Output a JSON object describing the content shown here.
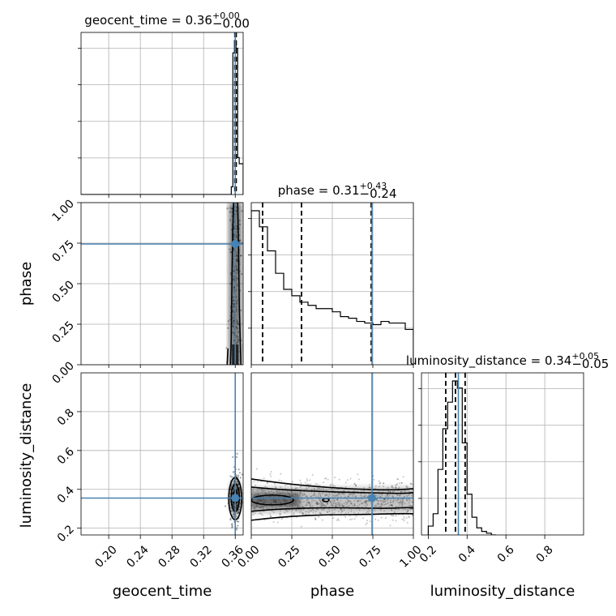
{
  "chart_data": {
    "type": "corner",
    "parameters": [
      "geocent_time",
      "phase",
      "luminosity_distance"
    ],
    "axis_labels": {
      "geocent_time": "geocent_time",
      "phase": "phase",
      "luminosity_distance": "luminosity_distance"
    },
    "titles": {
      "geocent_time": {
        "name": "geocent_time",
        "median": "0.36",
        "plus": "+0.00",
        "minus": "−0.00"
      },
      "phase": {
        "name": "phase",
        "median": "0.31",
        "plus": "+0.43",
        "minus": "−0.24"
      },
      "luminosity_distance": {
        "name": "luminosity_distance",
        "median": "0.34",
        "plus": "+0.05",
        "minus": "−0.05"
      }
    },
    "ranges": {
      "geocent_time": [
        0.165,
        0.37
      ],
      "phase": [
        0.0,
        1.0
      ],
      "luminosity_distance": [
        0.165,
        1.0
      ]
    },
    "tick_values": {
      "geocent_time": [
        0.2,
        0.24,
        0.28,
        0.32,
        0.36
      ],
      "phase_y": [
        0.0,
        0.25,
        0.5,
        0.75,
        1.0
      ],
      "phase_x": [
        0.0,
        0.25,
        0.5,
        0.75,
        1.0
      ],
      "luminosity_distance_y": [
        0.2,
        0.4,
        0.6,
        0.8
      ],
      "luminosity_distance_x": [
        0.2,
        0.4,
        0.6,
        0.8
      ]
    },
    "tick_labels": {
      "geocent_time": [
        "0.20",
        "0.24",
        "0.28",
        "0.32",
        "0.36"
      ],
      "phase_y": [
        "0.00",
        "0.25",
        "0.50",
        "0.75",
        "1.00"
      ],
      "phase_x": [
        "0.00",
        "0.25",
        "0.50",
        "0.75",
        "1.00"
      ],
      "luminosity_distance_y": [
        "0.2",
        "0.4",
        "0.6",
        "0.8"
      ],
      "luminosity_distance_x": [
        "0.2",
        "0.4",
        "0.6",
        "0.8"
      ]
    },
    "truths": {
      "geocent_time": 0.36,
      "phase": 0.745,
      "luminosity_distance": 0.355
    },
    "quantiles": {
      "geocent_time": [
        0.3595,
        0.3605,
        0.3612
      ],
      "phase": [
        0.07,
        0.31,
        0.74
      ],
      "luminosity_distance": [
        0.29,
        0.34,
        0.39
      ]
    },
    "histograms": {
      "geocent_time": {
        "edges": [
          0.165,
          0.355,
          0.357,
          0.359,
          0.361,
          0.363,
          0.365,
          0.37
        ],
        "counts": [
          0.0,
          0.05,
          0.92,
          1.0,
          0.95,
          0.24,
          0.2
        ]
      },
      "phase": {
        "edges": [
          0.0,
          0.05,
          0.1,
          0.15,
          0.2,
          0.25,
          0.3,
          0.35,
          0.4,
          0.45,
          0.5,
          0.55,
          0.6,
          0.65,
          0.7,
          0.75,
          0.8,
          0.85,
          0.9,
          0.95,
          1.0
        ],
        "counts": [
          0.96,
          0.86,
          0.71,
          0.57,
          0.47,
          0.43,
          0.39,
          0.37,
          0.35,
          0.35,
          0.33,
          0.3,
          0.29,
          0.27,
          0.26,
          0.25,
          0.27,
          0.26,
          0.26,
          0.22
        ]
      },
      "luminosity_distance": {
        "edges": [
          0.2,
          0.225,
          0.25,
          0.275,
          0.3,
          0.325,
          0.35,
          0.375,
          0.4,
          0.425,
          0.45,
          0.475,
          0.5,
          0.525,
          0.55
        ],
        "counts": [
          0.05,
          0.12,
          0.37,
          0.6,
          0.75,
          0.87,
          0.83,
          0.52,
          0.23,
          0.1,
          0.04,
          0.02,
          0.01,
          0.0
        ]
      }
    },
    "grid": true,
    "legend": "none"
  }
}
